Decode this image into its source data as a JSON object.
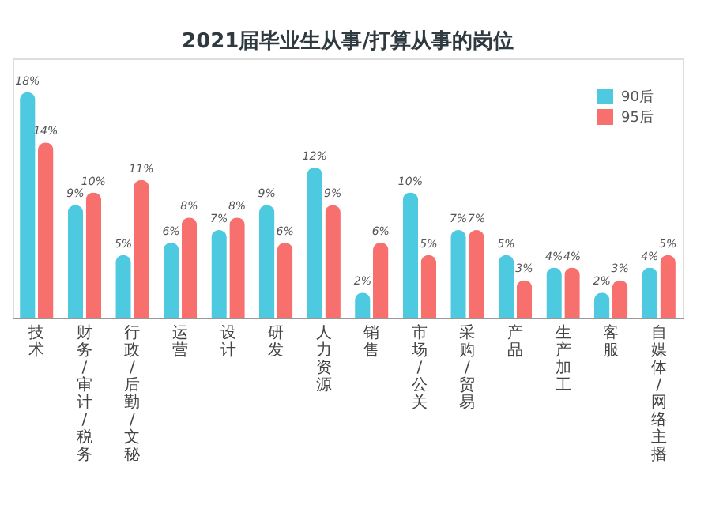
{
  "chart_data": {
    "type": "bar",
    "title": "2021届毕业生从事/打算从事的岗位",
    "categories": [
      "技术",
      "财务/审计/税务",
      "行政/后勤/文秘",
      "运营",
      "设计",
      "研发",
      "人力资源",
      "销售",
      "市场/公关",
      "采购/贸易",
      "产品",
      "生产加工",
      "客服",
      "自媒体/网络主播"
    ],
    "series": [
      {
        "name": "90后",
        "color": "#4dc9e0",
        "values": [
          18,
          9,
          5,
          6,
          7,
          9,
          12,
          2,
          10,
          7,
          5,
          4,
          2,
          4
        ],
        "value_labels": [
          "18%",
          "9%",
          "5%",
          "6%",
          "7%",
          "9%",
          "12%",
          "2%",
          "10%",
          "7%",
          "5%",
          "4%",
          "2%",
          "4%"
        ]
      },
      {
        "name": "95后",
        "color": "#f7706e",
        "values": [
          14,
          10,
          11,
          8,
          8,
          6,
          9,
          6,
          5,
          7,
          3,
          4,
          3,
          5
        ],
        "value_labels": [
          "14%",
          "10%",
          "11%",
          "8%",
          "8%",
          "6%",
          "9%",
          "6%",
          "5%",
          "7%",
          "3%",
          "4%",
          "3%",
          "5%"
        ]
      }
    ],
    "legend": "top right",
    "grid": false
  }
}
